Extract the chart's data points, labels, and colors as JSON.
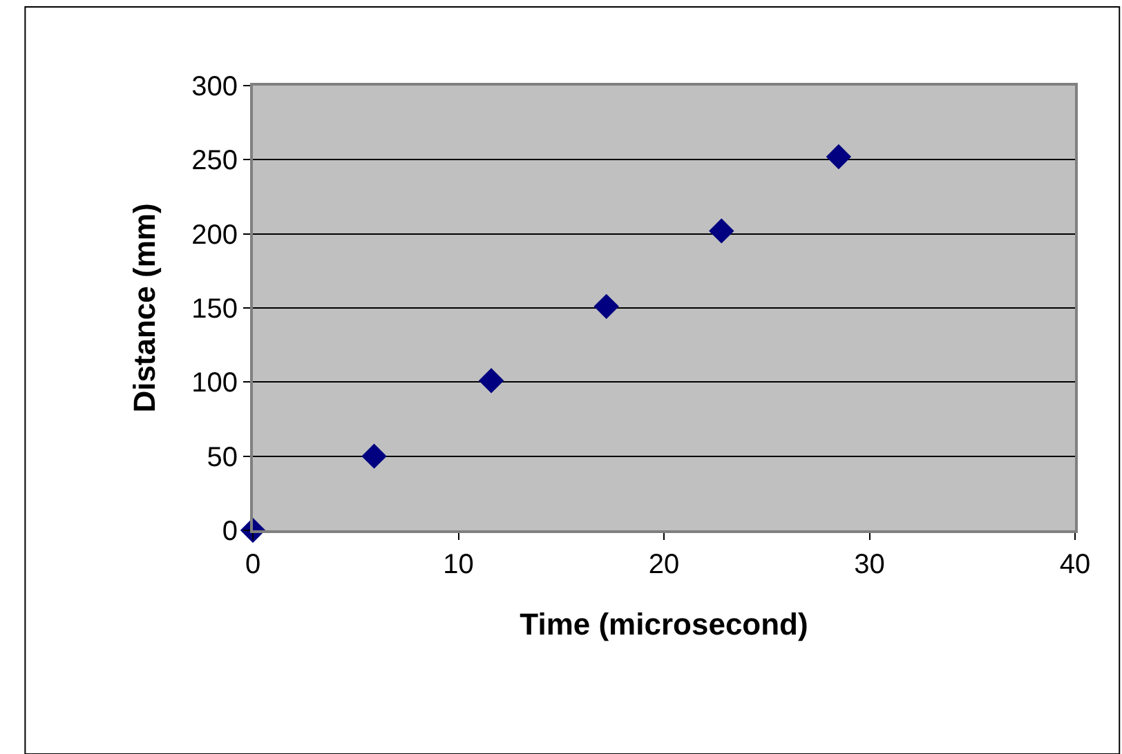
{
  "chart_data": {
    "type": "scatter",
    "xlabel": "Time (microsecond)",
    "ylabel": "Distance (mm)",
    "x": [
      0,
      5.9,
      11.6,
      17.2,
      22.8,
      28.5
    ],
    "values": [
      0,
      50,
      101,
      151,
      202,
      252
    ],
    "color": "#000080",
    "marker": "diamond",
    "xlim": [
      0,
      40
    ],
    "xticks": [
      0,
      10,
      20,
      30,
      40
    ],
    "ylim": [
      0,
      300
    ],
    "yticks": [
      0,
      50,
      100,
      150,
      200,
      250,
      300
    ],
    "grid": "y",
    "legend": false
  }
}
